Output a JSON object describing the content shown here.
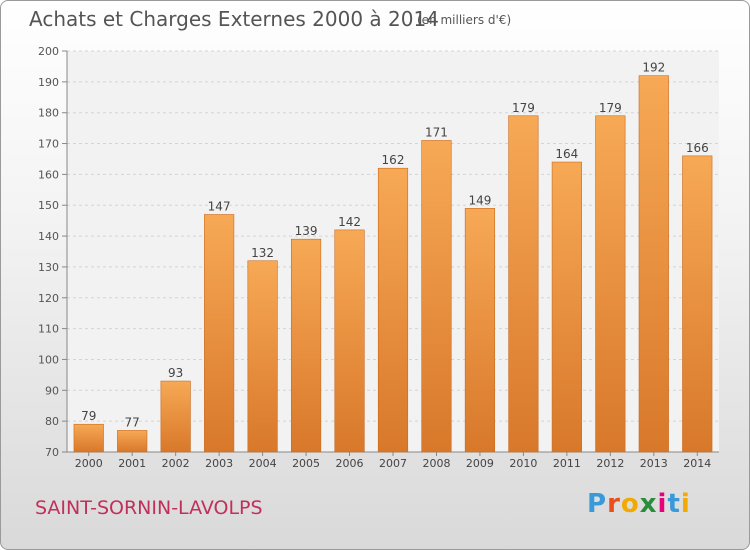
{
  "chart_data": {
    "type": "bar",
    "title": "Achats et Charges Externes 2000 à 2014",
    "subtitle": "(en milliers d'€)",
    "categories": [
      "2000",
      "2001",
      "2002",
      "2003",
      "2004",
      "2005",
      "2006",
      "2007",
      "2008",
      "2009",
      "2010",
      "2011",
      "2012",
      "2013",
      "2014"
    ],
    "values": [
      79,
      77,
      93,
      147,
      132,
      139,
      142,
      162,
      171,
      149,
      179,
      164,
      179,
      192,
      166
    ],
    "ylim": [
      70,
      200
    ],
    "yticks": [
      70,
      80,
      90,
      100,
      110,
      120,
      130,
      140,
      150,
      160,
      170,
      180,
      190,
      200
    ],
    "grid": true,
    "bar_color": "#f29b46"
  },
  "footer": {
    "commune": "SAINT-SORNIN-LAVOLPS",
    "logo_letters": [
      "P",
      "r",
      "o",
      "x",
      "i",
      "t",
      "i"
    ],
    "logo_colors": [
      "#3a9ad9",
      "#e94e1b",
      "#f2a900",
      "#2a8d3c",
      "#e6007e",
      "#3a9ad9",
      "#f2a900"
    ]
  }
}
